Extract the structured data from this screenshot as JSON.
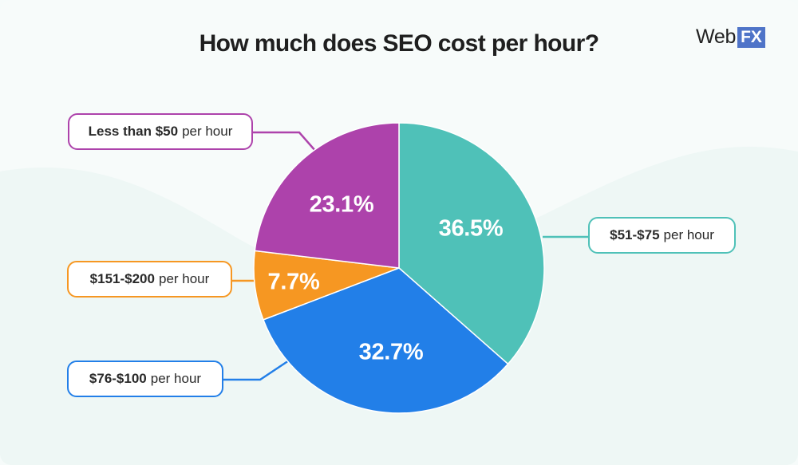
{
  "header": {
    "title": "How much does SEO cost per hour?",
    "logo_text": "Web",
    "logo_badge": "FX"
  },
  "colors": {
    "background": "#f7fbfa",
    "teal": "#4fc1b8",
    "blue": "#227fe8",
    "orange": "#f69722",
    "purple": "#ad42ab",
    "logo_badge": "#4f74c8"
  },
  "callouts": [
    {
      "bold": "Less than $50",
      "rest": "per hour",
      "color": "#ad42ab"
    },
    {
      "bold": "$51-$75",
      "rest": "per hour",
      "color": "#4fc1b8"
    },
    {
      "bold": "$151-$200",
      "rest": "per hour",
      "color": "#f69722"
    },
    {
      "bold": "$76-$100",
      "rest": "per hour",
      "color": "#227fe8"
    }
  ],
  "slices": [
    {
      "label": "$51-$75 per hour",
      "value": 36.5,
      "display": "36.5%",
      "color": "#4fc1b8"
    },
    {
      "label": "$76-$100 per hour",
      "value": 32.7,
      "display": "32.7%",
      "color": "#227fe8"
    },
    {
      "label": "$151-$200 per hour",
      "value": 7.7,
      "display": "7.7%",
      "color": "#f69722"
    },
    {
      "label": "Less than $50 per hour",
      "value": 23.1,
      "display": "23.1%",
      "color": "#ad42ab"
    }
  ],
  "chart_data": {
    "type": "pie",
    "title": "How much does SEO cost per hour?",
    "categories": [
      "$51-$75 per hour",
      "$76-$100 per hour",
      "$151-$200 per hour",
      "Less than $50 per hour"
    ],
    "values": [
      36.5,
      32.7,
      7.7,
      23.1
    ],
    "unit": "%",
    "colors": [
      "#4fc1b8",
      "#227fe8",
      "#f69722",
      "#ad42ab"
    ],
    "start_angle": "12 o'clock, clockwise",
    "legend": "callout labels with leader lines",
    "source_logo": "WebFX"
  }
}
